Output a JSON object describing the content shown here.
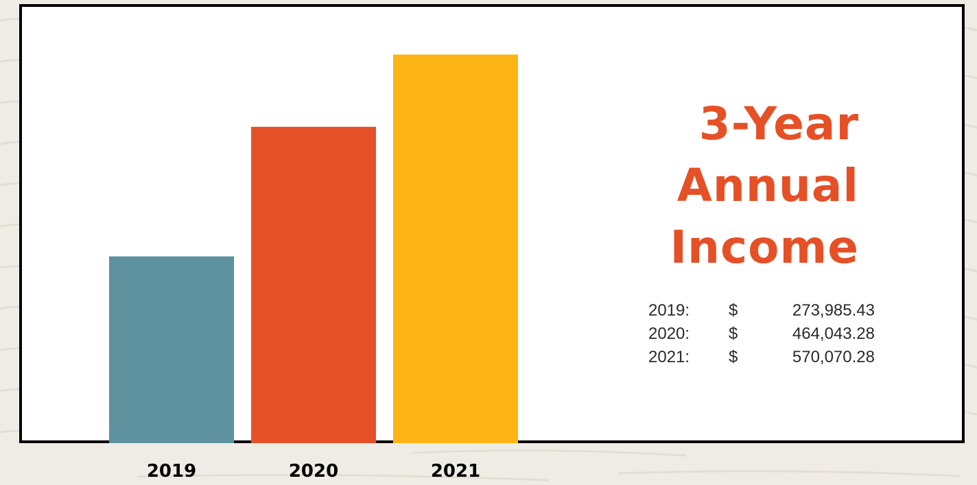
{
  "colors": {
    "background": "#efece5",
    "card": "#ffffff",
    "border": "#000000",
    "title": "#e55026",
    "text": "#2a2a2a"
  },
  "title_lines": [
    "3-Year",
    "Annual",
    "Income"
  ],
  "chart_data": {
    "type": "bar",
    "title": "3-Year Annual Income",
    "categories": [
      "2019",
      "2020",
      "2021"
    ],
    "values": [
      273985.43,
      464043.28,
      570070.28
    ],
    "colors": [
      "#5d929e",
      "#e55026",
      "#fdb515"
    ],
    "xlabel": "",
    "ylabel": "",
    "ylim": [
      0,
      640000
    ],
    "grid": false,
    "legend": "none"
  },
  "value_list": [
    {
      "year": "2019:",
      "currency": "$",
      "amount": "273,985.43"
    },
    {
      "year": "2020:",
      "currency": "$",
      "amount": "464,043.28"
    },
    {
      "year": "2021:",
      "currency": "$",
      "amount": "570,070.28"
    }
  ]
}
